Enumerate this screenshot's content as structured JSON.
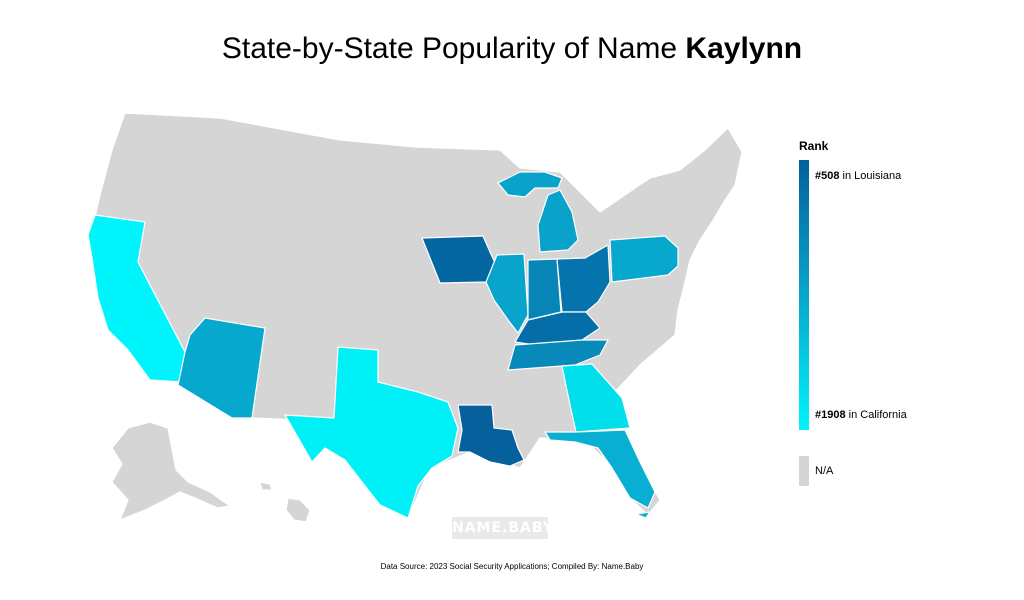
{
  "title": {
    "prefix": "State-by-State Popularity of Name ",
    "name": "Kaylynn"
  },
  "legend": {
    "title": "Rank",
    "top": {
      "rank": "#508",
      "text": " in Louisiana"
    },
    "bottom": {
      "rank": "#1908",
      "text": " in California"
    },
    "na_label": "N/A",
    "colors": {
      "high": "#05609c",
      "mid": "#06a6cc",
      "low": "#00f4fb",
      "na": "#d5d5d5"
    }
  },
  "watermark": "NAME.BABY",
  "source": "Data Source: 2023 Social Security Applications; Compiled By: Name.Baby",
  "states": [
    {
      "name": "Louisiana",
      "rank": 508,
      "color": "#05609c"
    },
    {
      "name": "Iowa",
      "rank": null,
      "color": "#0567a2"
    },
    {
      "name": "Kentucky",
      "rank": null,
      "color": "#056ea8"
    },
    {
      "name": "Ohio",
      "rank": null,
      "color": "#0574ad"
    },
    {
      "name": "Indiana",
      "rank": null,
      "color": "#0785b7"
    },
    {
      "name": "Tennessee",
      "rank": null,
      "color": "#0789ba"
    },
    {
      "name": "Michigan",
      "rank": null,
      "color": "#08a2cb"
    },
    {
      "name": "Illinois",
      "rank": null,
      "color": "#08a4cc"
    },
    {
      "name": "Pennsylvania",
      "rank": null,
      "color": "#07a7ce"
    },
    {
      "name": "Arizona",
      "rank": null,
      "color": "#07a8ce"
    },
    {
      "name": "Florida",
      "rank": null,
      "color": "#08afd2"
    },
    {
      "name": "Georgia",
      "rank": null,
      "color": "#00dfeb"
    },
    {
      "name": "Texas",
      "rank": null,
      "color": "#00f0f8"
    },
    {
      "name": "California",
      "rank": 1908,
      "color": "#00f4fb"
    }
  ]
}
